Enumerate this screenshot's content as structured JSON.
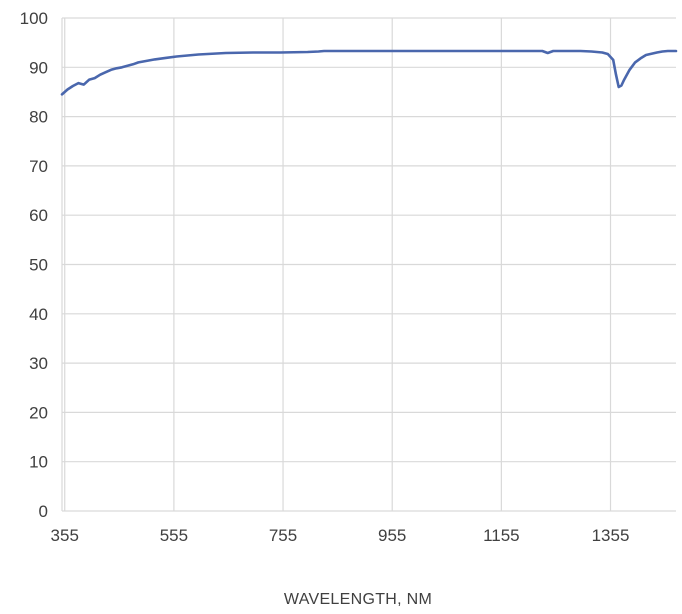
{
  "chart_data": {
    "type": "line",
    "title": "",
    "xlabel": "WAVELENGTH, NM",
    "ylabel": "",
    "xlim": [
      350,
      1475
    ],
    "ylim": [
      0,
      100
    ],
    "x_ticks": [
      355,
      555,
      755,
      955,
      1155,
      1355
    ],
    "y_ticks": [
      0,
      10,
      20,
      30,
      40,
      50,
      60,
      70,
      80,
      90,
      100
    ],
    "grid": true,
    "legend": "none",
    "colors": {
      "line": "#4a67ad",
      "grid": "#d9d9d9",
      "text": "#404040"
    },
    "series": [
      {
        "x": [
          350,
          360,
          370,
          380,
          390,
          400,
          410,
          420,
          430,
          440,
          450,
          460,
          470,
          480,
          490,
          500,
          520,
          540,
          560,
          580,
          600,
          650,
          700,
          750,
          800,
          820,
          830,
          900,
          1000,
          1100,
          1200,
          1230,
          1240,
          1250,
          1300,
          1320,
          1340,
          1350,
          1360,
          1365,
          1370,
          1375,
          1380,
          1390,
          1400,
          1410,
          1420,
          1440,
          1450,
          1460,
          1475
        ],
        "y": [
          84.5,
          85.5,
          86.2,
          86.8,
          86.5,
          87.5,
          87.8,
          88.5,
          89.0,
          89.5,
          89.8,
          90.0,
          90.3,
          90.6,
          91.0,
          91.2,
          91.6,
          91.9,
          92.2,
          92.4,
          92.6,
          92.9,
          93.0,
          93.0,
          93.1,
          93.2,
          93.3,
          93.3,
          93.3,
          93.3,
          93.3,
          93.3,
          92.9,
          93.3,
          93.3,
          93.2,
          93.0,
          92.7,
          91.5,
          88.5,
          86.0,
          86.3,
          87.5,
          89.5,
          91.0,
          91.8,
          92.5,
          93.0,
          93.2,
          93.3,
          93.3
        ]
      }
    ]
  }
}
